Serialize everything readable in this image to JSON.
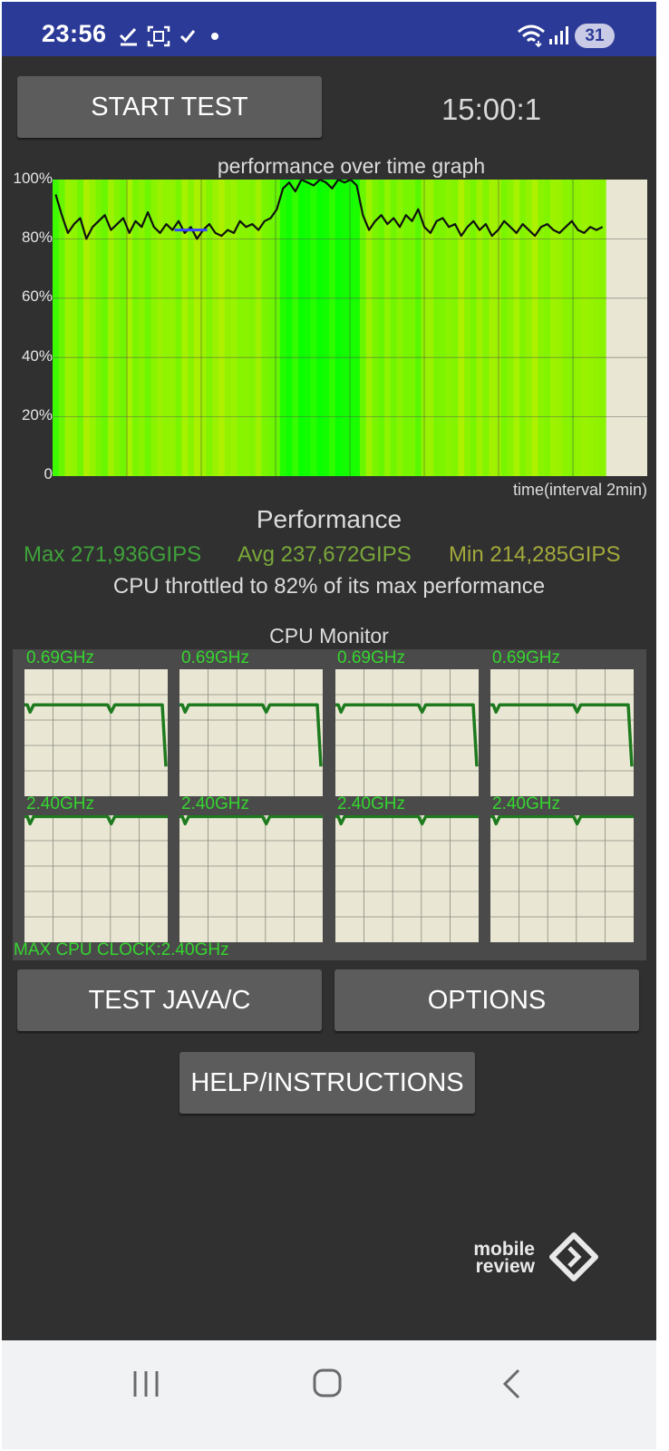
{
  "status_bar": {
    "time": "23:56",
    "icons": [
      "download-done-icon",
      "screenshot-icon",
      "check-icon",
      "dot-icon",
      "wifi-icon",
      "signal-icon"
    ],
    "battery": "31"
  },
  "header": {
    "start_label": "START TEST",
    "timer": "15:00:1"
  },
  "graph": {
    "title": "performance over time graph",
    "y_ticks": [
      "100%",
      "80%",
      "60%",
      "40%",
      "20%",
      "0"
    ],
    "x_label": "time(interval 2min)"
  },
  "chart_data": {
    "type": "area",
    "title": "performance over time graph",
    "xlabel": "time(interval 2min)",
    "ylabel": "",
    "ylim": [
      0,
      100
    ],
    "grid": true,
    "x_intervals": 8,
    "x_filled_until_fraction": 0.93,
    "series": [
      {
        "values": [
          95,
          88,
          82,
          85,
          87,
          80,
          84,
          86,
          88,
          83,
          85,
          87,
          82,
          86,
          84,
          89,
          84,
          82,
          85,
          83,
          86,
          82,
          84,
          80,
          83,
          85,
          82,
          81,
          83,
          82,
          86,
          84,
          85,
          83,
          86,
          87,
          90,
          97,
          99,
          96,
          100,
          99,
          98,
          100,
          99,
          97,
          100,
          99,
          100,
          98,
          88,
          83,
          86,
          88,
          85,
          87,
          84,
          88,
          86,
          90,
          84,
          82,
          86,
          87,
          84,
          85,
          81,
          84,
          86,
          83,
          85,
          81,
          83,
          86,
          84,
          82,
          85,
          83,
          81,
          84,
          85,
          83,
          82,
          84,
          86,
          83,
          82,
          84,
          83,
          84
        ]
      }
    ],
    "highlight": {
      "color": "#3a44ff",
      "x_fraction": [
        0.205,
        0.26
      ],
      "value": 83
    }
  },
  "performance": {
    "title": "Performance",
    "max": "Max 271,936GIPS",
    "avg": "Avg 237,672GIPS",
    "min": "Min 214,285GIPS",
    "throttle": "CPU throttled to 82% of its max performance"
  },
  "cpu_monitor": {
    "title": "CPU Monitor",
    "cores": [
      {
        "label": "0.69GHz",
        "level": 0.72,
        "dips": [
          0.02,
          0.58
        ],
        "drop_end": 0.52
      },
      {
        "label": "0.69GHz",
        "level": 0.72,
        "dips": [
          0.02,
          0.58
        ],
        "drop_end": 0.52
      },
      {
        "label": "0.69GHz",
        "level": 0.72,
        "dips": [
          0.02,
          0.58
        ],
        "drop_end": 0.52
      },
      {
        "label": "0.69GHz",
        "level": 0.72,
        "dips": [
          0.02,
          0.58
        ],
        "drop_end": 0.52
      },
      {
        "label": "2.40GHz",
        "level": 0.99,
        "dips": [
          0.02,
          0.58
        ],
        "drop_end": null
      },
      {
        "label": "2.40GHz",
        "level": 0.99,
        "dips": [
          0.02,
          0.58
        ],
        "drop_end": null
      },
      {
        "label": "2.40GHz",
        "level": 0.99,
        "dips": [
          0.02,
          0.58
        ],
        "drop_end": null
      },
      {
        "label": "2.40GHz",
        "level": 0.99,
        "dips": [
          0.02,
          0.58
        ],
        "drop_end": null
      }
    ],
    "max_clock": "MAX CPU CLOCK:2.40GHz"
  },
  "buttons": {
    "test_label": "TEST JAVA/C",
    "options_label": "OPTIONS",
    "help_label": "HELP/INSTRUCTIONS"
  },
  "watermark": {
    "line1": "mobile",
    "line2": "review"
  },
  "nav": {
    "icons": [
      "recent-apps-icon",
      "home-icon",
      "back-icon"
    ]
  },
  "colors": {
    "status_bar": "#2c3a97",
    "background": "#303030",
    "button": "#5c5c5c",
    "graph_bg": "#e9e7d3",
    "max": "#3fa23a",
    "avg": "#7aa83a",
    "min": "#a3a93a",
    "cpu_line": "#1e7a1e",
    "cpu_label": "#35d62f"
  }
}
